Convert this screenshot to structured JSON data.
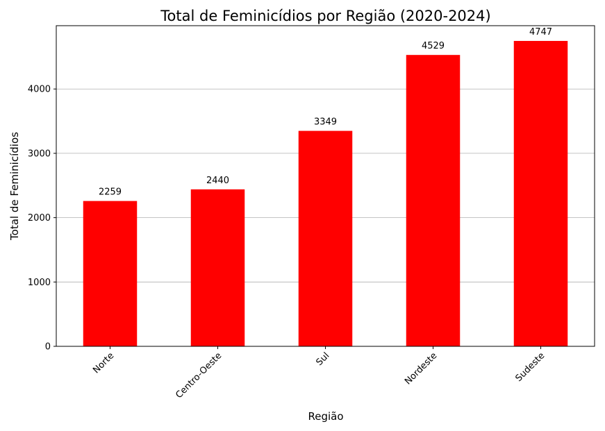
{
  "chart_data": {
    "type": "bar",
    "title": "Total de Feminicídios por Região (2020-2024)",
    "xlabel": "Região",
    "ylabel": "Total de Feminicídios",
    "categories": [
      "Norte",
      "Centro-Oeste",
      "Sul",
      "Nordeste",
      "Sudeste"
    ],
    "values": [
      2259,
      2440,
      3349,
      4529,
      4747
    ],
    "data_labels": [
      "2259",
      "2440",
      "3349",
      "4529",
      "4747"
    ],
    "yticks": [
      0,
      1000,
      2000,
      3000,
      4000
    ],
    "ytick_labels": [
      "0",
      "1000",
      "2000",
      "3000",
      "4000"
    ],
    "ylim": [
      0,
      4984
    ],
    "grid_y": true,
    "bar_color": "#ff0000"
  }
}
